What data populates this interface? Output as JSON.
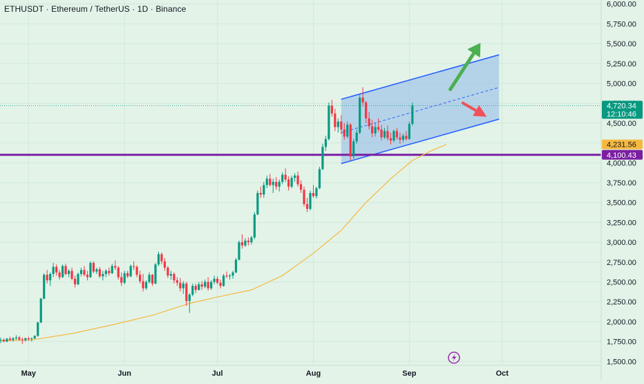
{
  "header": {
    "symbol_title": "ETHUSDT · Ethereum / TetherUS · 1D · Binance"
  },
  "colors": {
    "background": "#e3f3e8",
    "up": "#089981",
    "down": "#f23645",
    "ma": "#f5b940",
    "support": "#7b1fa2",
    "channel_line": "#2962ff",
    "channel_fill": "#90b8e8",
    "arrow_up": "#4caf50",
    "arrow_down": "#f0505a"
  },
  "chart_data": {
    "type": "candlestick",
    "x_axis": {
      "labels": [
        "May",
        "Jun",
        "Jul",
        "Aug",
        "Sep",
        "Oct"
      ],
      "dates": [
        "2025-05-01",
        "2025-06-01",
        "2025-07-01",
        "2025-08-01",
        "2025-09-01",
        "2025-10-01"
      ]
    },
    "y_axis": {
      "range": [
        1450,
        6050
      ],
      "ticks": [
        6000,
        5750,
        5500,
        5250,
        5000,
        4750,
        4500,
        4250,
        4000,
        3750,
        3500,
        3250,
        3000,
        2750,
        2500,
        2250,
        2000,
        1750,
        1500
      ],
      "tick_labels": [
        "6,000.00",
        "5,750.00",
        "5,500.00",
        "5,250.00",
        "5,000.00",
        "4,750.00",
        "4,500.00",
        "4,250.00",
        "4,000.00",
        "3,750.00",
        "3,500.00",
        "3,250.00",
        "3,000.00",
        "2,750.00",
        "2,500.00",
        "2,250.00",
        "2,000.00",
        "1,750.00",
        "1,500.00"
      ]
    },
    "price_labels": [
      {
        "value": 4720.34,
        "text": "4,720.34",
        "subtext": "12:10:46",
        "kind": "last"
      },
      {
        "value": 4231.56,
        "text": "4,231.56",
        "kind": "ma"
      },
      {
        "value": 4100.43,
        "text": "4,100.43",
        "kind": "support"
      }
    ],
    "support_level": 4100.43,
    "channel": {
      "start_date": "2025-08-10",
      "end_date": "2025-09-30",
      "upper": [
        4800,
        5360
      ],
      "mid": [
        4380,
        4950
      ],
      "lower": [
        3990,
        4550
      ]
    },
    "arrows": [
      {
        "direction": "up",
        "from_date": "2025-09-14",
        "from": 4910,
        "to_date": "2025-09-24",
        "to": 5510
      },
      {
        "direction": "down",
        "from_date": "2025-09-18",
        "from": 4760,
        "to_date": "2025-09-26",
        "to": 4580
      }
    ],
    "series": [
      {
        "kind": "ohlc",
        "start_date": "2025-04-22",
        "ohlc": [
          [
            1760,
            1800,
            1730,
            1770
          ],
          [
            1770,
            1790,
            1740,
            1750
          ],
          [
            1750,
            1795,
            1740,
            1785
          ],
          [
            1785,
            1810,
            1755,
            1770
          ],
          [
            1770,
            1805,
            1750,
            1790
          ],
          [
            1790,
            1830,
            1770,
            1800
          ],
          [
            1800,
            1820,
            1760,
            1775
          ],
          [
            1775,
            1800,
            1720,
            1765
          ],
          [
            1765,
            1800,
            1750,
            1790
          ],
          [
            1790,
            1810,
            1760,
            1780
          ],
          [
            1780,
            1800,
            1750,
            1790
          ],
          [
            1790,
            1830,
            1780,
            1820
          ],
          [
            1820,
            2000,
            1810,
            1990
          ],
          [
            1990,
            2300,
            1980,
            2290
          ],
          [
            2290,
            2610,
            2280,
            2590
          ],
          [
            2590,
            2650,
            2480,
            2520
          ],
          [
            2520,
            2620,
            2450,
            2600
          ],
          [
            2600,
            2740,
            2560,
            2690
          ],
          [
            2690,
            2720,
            2580,
            2620
          ],
          [
            2620,
            2650,
            2530,
            2560
          ],
          [
            2560,
            2720,
            2550,
            2700
          ],
          [
            2700,
            2730,
            2580,
            2600
          ],
          [
            2600,
            2660,
            2560,
            2640
          ],
          [
            2640,
            2680,
            2520,
            2540
          ],
          [
            2540,
            2580,
            2430,
            2470
          ],
          [
            2470,
            2620,
            2460,
            2600
          ],
          [
            2600,
            2680,
            2570,
            2650
          ],
          [
            2650,
            2700,
            2570,
            2590
          ],
          [
            2590,
            2640,
            2520,
            2560
          ],
          [
            2560,
            2760,
            2550,
            2740
          ],
          [
            2740,
            2760,
            2610,
            2630
          ],
          [
            2630,
            2680,
            2600,
            2660
          ],
          [
            2660,
            2690,
            2550,
            2570
          ],
          [
            2570,
            2640,
            2520,
            2600
          ],
          [
            2600,
            2660,
            2560,
            2640
          ],
          [
            2640,
            2680,
            2580,
            2610
          ],
          [
            2610,
            2730,
            2600,
            2700
          ],
          [
            2700,
            2770,
            2650,
            2680
          ],
          [
            2680,
            2700,
            2530,
            2560
          ],
          [
            2560,
            2620,
            2450,
            2490
          ],
          [
            2490,
            2640,
            2470,
            2610
          ],
          [
            2610,
            2640,
            2550,
            2570
          ],
          [
            2570,
            2720,
            2560,
            2700
          ],
          [
            2700,
            2760,
            2650,
            2690
          ],
          [
            2690,
            2710,
            2560,
            2590
          ],
          [
            2590,
            2640,
            2480,
            2510
          ],
          [
            2510,
            2600,
            2380,
            2420
          ],
          [
            2420,
            2520,
            2400,
            2500
          ],
          [
            2500,
            2620,
            2480,
            2590
          ],
          [
            2590,
            2600,
            2450,
            2480
          ],
          [
            2480,
            2740,
            2470,
            2720
          ],
          [
            2720,
            2880,
            2700,
            2850
          ],
          [
            2850,
            2870,
            2720,
            2760
          ],
          [
            2760,
            2800,
            2640,
            2680
          ],
          [
            2680,
            2700,
            2550,
            2580
          ],
          [
            2580,
            2640,
            2530,
            2600
          ],
          [
            2600,
            2620,
            2480,
            2520
          ],
          [
            2520,
            2560,
            2450,
            2490
          ],
          [
            2490,
            2550,
            2380,
            2420
          ],
          [
            2420,
            2510,
            2350,
            2480
          ],
          [
            2480,
            2500,
            2200,
            2260
          ],
          [
            2260,
            2360,
            2110,
            2340
          ],
          [
            2340,
            2480,
            2320,
            2450
          ],
          [
            2450,
            2480,
            2360,
            2400
          ],
          [
            2400,
            2500,
            2390,
            2470
          ],
          [
            2470,
            2510,
            2400,
            2440
          ],
          [
            2440,
            2530,
            2420,
            2500
          ],
          [
            2500,
            2560,
            2390,
            2420
          ],
          [
            2420,
            2520,
            2400,
            2500
          ],
          [
            2500,
            2580,
            2470,
            2540
          ],
          [
            2540,
            2570,
            2470,
            2490
          ],
          [
            2490,
            2530,
            2420,
            2450
          ],
          [
            2450,
            2600,
            2440,
            2580
          ],
          [
            2580,
            2630,
            2550,
            2570
          ],
          [
            2570,
            2600,
            2530,
            2580
          ],
          [
            2580,
            2640,
            2540,
            2620
          ],
          [
            2620,
            2800,
            2610,
            2780
          ],
          [
            2780,
            3020,
            2770,
            3000
          ],
          [
            3000,
            3100,
            2920,
            2960
          ],
          [
            2960,
            3050,
            2940,
            3020
          ],
          [
            3020,
            3060,
            2960,
            3000
          ],
          [
            3000,
            3080,
            2970,
            3060
          ],
          [
            3060,
            3380,
            3040,
            3350
          ],
          [
            3350,
            3650,
            3340,
            3620
          ],
          [
            3620,
            3700,
            3560,
            3600
          ],
          [
            3600,
            3760,
            3560,
            3720
          ],
          [
            3720,
            3840,
            3680,
            3800
          ],
          [
            3800,
            3860,
            3700,
            3720
          ],
          [
            3720,
            3800,
            3620,
            3760
          ],
          [
            3760,
            3820,
            3660,
            3700
          ],
          [
            3700,
            3790,
            3640,
            3760
          ],
          [
            3760,
            3880,
            3730,
            3850
          ],
          [
            3850,
            3930,
            3760,
            3790
          ],
          [
            3790,
            3830,
            3650,
            3700
          ],
          [
            3700,
            3840,
            3680,
            3810
          ],
          [
            3810,
            3870,
            3760,
            3840
          ],
          [
            3840,
            3890,
            3700,
            3730
          ],
          [
            3730,
            3780,
            3620,
            3660
          ],
          [
            3660,
            3700,
            3450,
            3480
          ],
          [
            3480,
            3560,
            3380,
            3420
          ],
          [
            3420,
            3650,
            3400,
            3620
          ],
          [
            3620,
            3720,
            3560,
            3580
          ],
          [
            3580,
            3700,
            3550,
            3680
          ],
          [
            3680,
            3950,
            3670,
            3920
          ],
          [
            3920,
            4240,
            3910,
            4200
          ],
          [
            4200,
            4340,
            4150,
            4300
          ],
          [
            4300,
            4760,
            4280,
            4720
          ],
          [
            4720,
            4790,
            4580,
            4620
          ],
          [
            4620,
            4680,
            4400,
            4450
          ],
          [
            4450,
            4560,
            4380,
            4520
          ],
          [
            4520,
            4600,
            4360,
            4420
          ],
          [
            4420,
            4500,
            4290,
            4330
          ],
          [
            4330,
            4520,
            4310,
            4480
          ],
          [
            4480,
            4500,
            4030,
            4080
          ],
          [
            4080,
            4300,
            4050,
            4270
          ],
          [
            4270,
            4420,
            4240,
            4380
          ],
          [
            4380,
            4860,
            4360,
            4820
          ],
          [
            4820,
            4950,
            4710,
            4760
          ],
          [
            4760,
            4780,
            4500,
            4560
          ],
          [
            4560,
            4640,
            4420,
            4460
          ],
          [
            4460,
            4540,
            4320,
            4370
          ],
          [
            4370,
            4500,
            4330,
            4450
          ],
          [
            4450,
            4560,
            4390,
            4420
          ],
          [
            4420,
            4480,
            4280,
            4320
          ],
          [
            4320,
            4440,
            4300,
            4400
          ],
          [
            4400,
            4470,
            4280,
            4310
          ],
          [
            4310,
            4380,
            4230,
            4280
          ],
          [
            4280,
            4420,
            4260,
            4400
          ],
          [
            4400,
            4440,
            4290,
            4320
          ],
          [
            4320,
            4380,
            4240,
            4290
          ],
          [
            4290,
            4370,
            4260,
            4340
          ],
          [
            4340,
            4400,
            4280,
            4300
          ],
          [
            4300,
            4520,
            4290,
            4490
          ],
          [
            4490,
            4760,
            4470,
            4720
          ]
        ]
      },
      {
        "kind": "moving_average",
        "points": [
          [
            "2025-04-22",
            1760
          ],
          [
            "2025-05-02",
            1770
          ],
          [
            "2025-05-15",
            1850
          ],
          [
            "2025-05-28",
            1960
          ],
          [
            "2025-06-10",
            2080
          ],
          [
            "2025-06-22",
            2230
          ],
          [
            "2025-07-01",
            2310
          ],
          [
            "2025-07-12",
            2400
          ],
          [
            "2025-07-22",
            2580
          ],
          [
            "2025-08-01",
            2860
          ],
          [
            "2025-08-10",
            3150
          ],
          [
            "2025-08-18",
            3500
          ],
          [
            "2025-08-26",
            3800
          ],
          [
            "2025-09-02",
            4030
          ],
          [
            "2025-09-08",
            4150
          ],
          [
            "2025-09-13",
            4231.56
          ]
        ]
      }
    ]
  }
}
